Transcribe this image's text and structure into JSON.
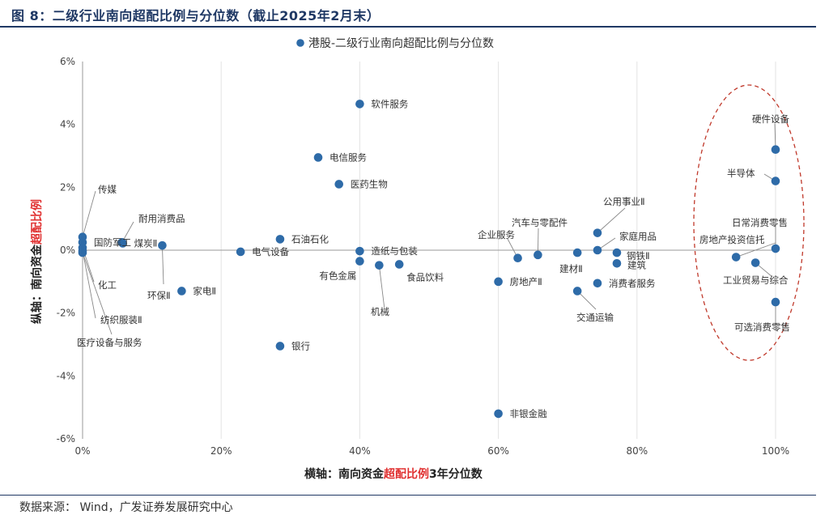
{
  "figure_title": "图 8：二级行业南向超配比例与分位数（截止2025年2月末）",
  "source_text": "数据来源：  Wind，广发证券发展研究中心",
  "colors": {
    "point": "#2e6ba8",
    "accent_red": "#e03030",
    "title": "#1f3864",
    "ellipse": "#c0392b"
  },
  "chart_data": {
    "type": "scatter",
    "legend": "港股-二级行业南向超配比例与分位数",
    "legend_position": "top-center",
    "xlabel": {
      "before": "横轴：南向资金",
      "highlight": "超配比例",
      "after": "3年分位数"
    },
    "ylabel": {
      "before": "纵轴：南向资金",
      "highlight": "超配比例"
    },
    "xlim": [
      0,
      1
    ],
    "ylim": [
      -6,
      6
    ],
    "x_ticks": [
      "0%",
      "20%",
      "40%",
      "60%",
      "80%",
      "100%"
    ],
    "y_ticks": [
      "6%",
      "4%",
      "2%",
      "0%",
      "-2%",
      "-4%",
      "-6%"
    ],
    "grid": "vertical gridlines at x ticks; zero horizontal line",
    "points": [
      {
        "label": "软件服务",
        "x": 0.4,
        "y": 4.65
      },
      {
        "label": "电信服务",
        "x": 0.34,
        "y": 2.95
      },
      {
        "label": "医药生物",
        "x": 0.37,
        "y": 2.1
      },
      {
        "label": "石油石化",
        "x": 0.285,
        "y": 0.35
      },
      {
        "label": "电气设备",
        "x": 0.228,
        "y": -0.05
      },
      {
        "label": "造纸与包装",
        "x": 0.4,
        "y": -0.03
      },
      {
        "label": "有色金属",
        "x": 0.4,
        "y": -0.35
      },
      {
        "label": "机械",
        "x": 0.428,
        "y": -0.48
      },
      {
        "label": "食品饮料",
        "x": 0.457,
        "y": -0.45
      },
      {
        "label": "银行",
        "x": 0.285,
        "y": -3.05
      },
      {
        "label": "家电Ⅱ",
        "x": 0.143,
        "y": -1.3
      },
      {
        "label": "环保Ⅱ",
        "x": 0.115,
        "y": 0.15
      },
      {
        "label": "煤炭Ⅱ",
        "x": 0.058,
        "y": 0.22
      },
      {
        "label": "耐用消费品",
        "x": 0.057,
        "y": 0.25
      },
      {
        "label": "传媒",
        "x": 0.0,
        "y": 0.42
      },
      {
        "label": "国防军工",
        "x": 0.0,
        "y": 0.25
      },
      {
        "label": "化工",
        "x": 0.0,
        "y": 0.08
      },
      {
        "label": "纺织服装Ⅱ",
        "x": 0.0,
        "y": -0.02
      },
      {
        "label": "医疗设备与服务",
        "x": 0.0,
        "y": -0.08
      },
      {
        "label": "企业服务",
        "x": 0.628,
        "y": -0.25
      },
      {
        "label": "汽车与零配件",
        "x": 0.657,
        "y": -0.15
      },
      {
        "label": "房地产Ⅱ",
        "x": 0.6,
        "y": -1.0
      },
      {
        "label": "非银金融",
        "x": 0.6,
        "y": -5.2
      },
      {
        "label": "建材Ⅱ",
        "x": 0.714,
        "y": -0.08
      },
      {
        "label": "公用事业Ⅱ",
        "x": 0.743,
        "y": 0.55
      },
      {
        "label": "家庭用品",
        "x": 0.743,
        "y": 0.0
      },
      {
        "label": "钢铁Ⅱ",
        "x": 0.771,
        "y": -0.08
      },
      {
        "label": "建筑",
        "x": 0.771,
        "y": -0.42
      },
      {
        "label": "消费者服务",
        "x": 0.743,
        "y": -1.05
      },
      {
        "label": "交通运输",
        "x": 0.714,
        "y": -1.3
      },
      {
        "label": "硬件设备",
        "x": 1.0,
        "y": 3.2
      },
      {
        "label": "半导体",
        "x": 1.0,
        "y": 2.2
      },
      {
        "label": "日常消费零售",
        "x": 1.0,
        "y": 0.05
      },
      {
        "label": "房地产投资信托",
        "x": 0.943,
        "y": -0.22
      },
      {
        "label": "工业贸易与综合",
        "x": 0.971,
        "y": -0.4
      },
      {
        "label": "可选消费零售",
        "x": 1.0,
        "y": -1.65
      }
    ]
  }
}
